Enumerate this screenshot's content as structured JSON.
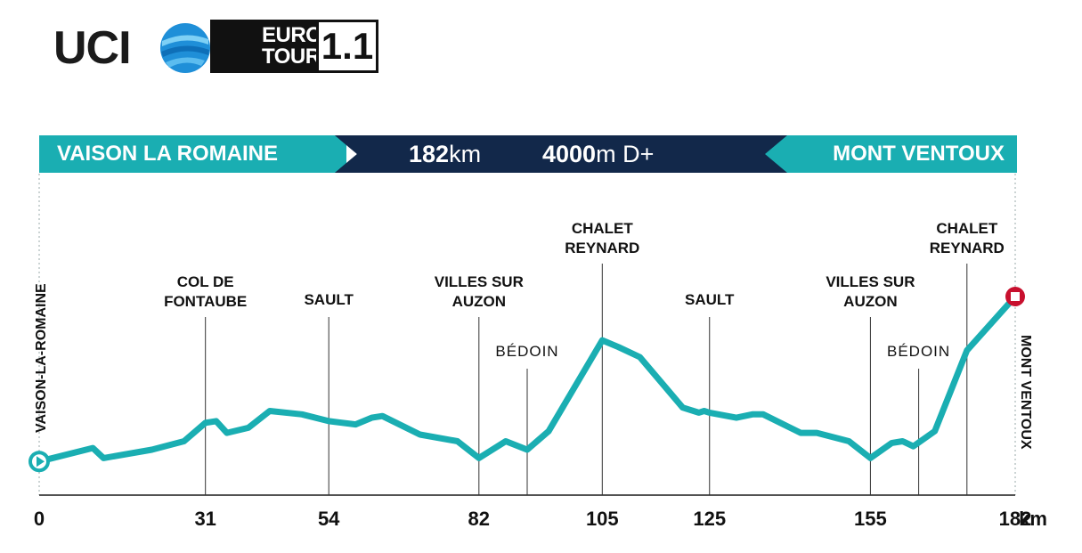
{
  "logo": {
    "brand": "UCI",
    "tour_line1": "EUROPE",
    "tour_line2": "TOUR",
    "class": "1.1"
  },
  "banner": {
    "start": "VAISON LA ROMAINE",
    "distance_value": "182",
    "distance_unit": "km",
    "elevation_value": "4000",
    "elevation_unit": "m D+",
    "finish": "MONT VENTOUX"
  },
  "colors": {
    "teal": "#1aaeb2",
    "navy": "#12284a",
    "marker_red": "#c8102e",
    "axis": "#1a1a1a"
  },
  "chart_data": {
    "type": "area",
    "title": "",
    "xlabel": "",
    "ylabel": "",
    "x_unit": "km",
    "xlim": [
      0,
      182
    ],
    "x_ticks": [
      0,
      31,
      54,
      82,
      105,
      125,
      155,
      182
    ],
    "start_label": "VAISON-LA-ROMAINE",
    "finish_label": "MONT VENTOUX",
    "elevation_relative": {
      "x": [
        0,
        10,
        12,
        21,
        27,
        31,
        33,
        35,
        39,
        43,
        49,
        54,
        59,
        62,
        64,
        71,
        78,
        82,
        87,
        91,
        95,
        105,
        108,
        112,
        120,
        123,
        124,
        125,
        130,
        133,
        135,
        142,
        145,
        151,
        155,
        159,
        161,
        163,
        167,
        173,
        182
      ],
      "y": [
        0.02,
        0.1,
        0.04,
        0.09,
        0.14,
        0.25,
        0.26,
        0.19,
        0.22,
        0.32,
        0.3,
        0.26,
        0.24,
        0.28,
        0.29,
        0.18,
        0.14,
        0.04,
        0.14,
        0.09,
        0.2,
        0.74,
        0.7,
        0.64,
        0.34,
        0.31,
        0.32,
        0.31,
        0.28,
        0.3,
        0.3,
        0.19,
        0.19,
        0.14,
        0.04,
        0.13,
        0.14,
        0.11,
        0.2,
        0.68,
        1.0
      ]
    },
    "waypoints": [
      {
        "km": 31,
        "label_line1": "COL DE",
        "label_line2": "FONTAUBE",
        "style": "bold"
      },
      {
        "km": 54,
        "label_line1": "SAULT",
        "label_line2": "",
        "style": "bold"
      },
      {
        "km": 82,
        "label_line1": "VILLES SUR",
        "label_line2": "AUZON",
        "style": "bold"
      },
      {
        "km": 91,
        "label_line1": "BÉDOIN",
        "label_line2": "",
        "style": "light"
      },
      {
        "km": 105,
        "label_line1": "CHALET",
        "label_line2": "REYNARD",
        "style": "bold"
      },
      {
        "km": 125,
        "label_line1": "SAULT",
        "label_line2": "",
        "style": "bold"
      },
      {
        "km": 155,
        "label_line1": "VILLES SUR",
        "label_line2": "AUZON",
        "style": "bold"
      },
      {
        "km": 164,
        "label_line1": "BÉDOIN",
        "label_line2": "",
        "style": "light"
      },
      {
        "km": 173,
        "label_line1": "CHALET",
        "label_line2": "REYNARD",
        "style": "bold"
      }
    ]
  }
}
